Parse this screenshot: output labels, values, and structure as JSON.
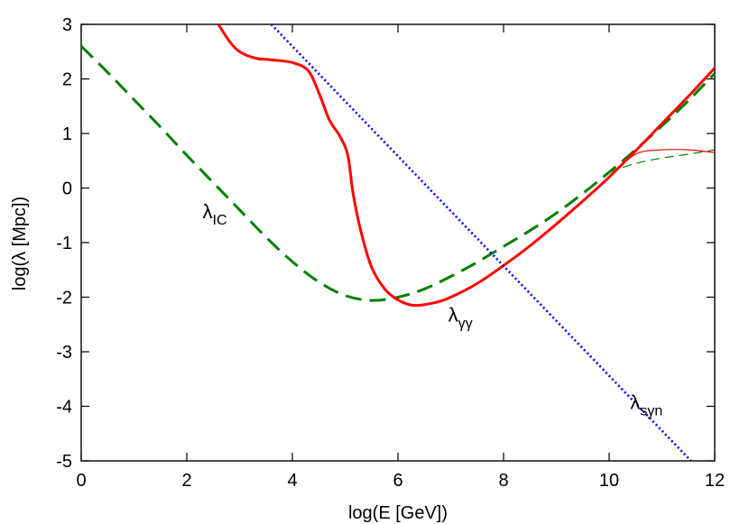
{
  "chart_data": {
    "type": "line",
    "xlabel": "log(E [GeV])",
    "ylabel": "log(λ [Mpc])",
    "xlim": [
      0,
      12
    ],
    "ylim": [
      -5,
      3
    ],
    "xticks": [
      0,
      2,
      4,
      6,
      8,
      10,
      12
    ],
    "yticks": [
      -5,
      -4,
      -3,
      -2,
      -1,
      0,
      1,
      2,
      3
    ],
    "xtick_labels": [
      "0",
      "2",
      "4",
      "6",
      "8",
      "10",
      "12"
    ],
    "ytick_labels": [
      "-5",
      "-4",
      "-3",
      "-2",
      "-1",
      "0",
      "1",
      "2",
      "3"
    ],
    "grid": false,
    "legend": "none",
    "series": [
      {
        "id": "ic",
        "color": "#008000",
        "style": "dashed",
        "width": "thick",
        "points": [
          [
            0,
            2.6
          ],
          [
            0.5,
            2.12
          ],
          [
            1,
            1.62
          ],
          [
            1.5,
            1.12
          ],
          [
            2,
            0.6
          ],
          [
            2.5,
            0.1
          ],
          [
            3,
            -0.4
          ],
          [
            3.5,
            -0.9
          ],
          [
            4,
            -1.35
          ],
          [
            4.5,
            -1.72
          ],
          [
            5,
            -1.97
          ],
          [
            5.5,
            -2.06
          ],
          [
            6,
            -2.0
          ],
          [
            6.5,
            -1.85
          ],
          [
            7,
            -1.62
          ],
          [
            7.5,
            -1.36
          ],
          [
            8,
            -1.07
          ],
          [
            8.5,
            -0.78
          ],
          [
            9,
            -0.46
          ],
          [
            9.5,
            -0.1
          ],
          [
            10,
            0.29
          ],
          [
            10.5,
            0.7
          ],
          [
            11,
            1.14
          ],
          [
            11.5,
            1.6
          ],
          [
            12,
            2.1
          ]
        ]
      },
      {
        "id": "ic-low",
        "color": "#008000",
        "style": "dashed",
        "width": "thin",
        "points": [
          [
            10,
            0.29
          ],
          [
            10.5,
            0.45
          ],
          [
            11,
            0.55
          ],
          [
            11.5,
            0.62
          ],
          [
            12,
            0.7
          ]
        ]
      },
      {
        "id": "gg",
        "color": "#ff0000",
        "style": "solid",
        "width": "thick",
        "points": [
          [
            2.6,
            3.0
          ],
          [
            2.8,
            2.7
          ],
          [
            3.0,
            2.5
          ],
          [
            3.3,
            2.38
          ],
          [
            3.6,
            2.35
          ],
          [
            4.0,
            2.3
          ],
          [
            4.3,
            2.15
          ],
          [
            4.5,
            1.75
          ],
          [
            4.7,
            1.25
          ],
          [
            4.9,
            0.95
          ],
          [
            5.05,
            0.6
          ],
          [
            5.15,
            -0.1
          ],
          [
            5.3,
            -0.8
          ],
          [
            5.5,
            -1.45
          ],
          [
            5.75,
            -1.85
          ],
          [
            6.0,
            -2.05
          ],
          [
            6.3,
            -2.15
          ],
          [
            6.7,
            -2.1
          ],
          [
            7.0,
            -2.0
          ],
          [
            7.5,
            -1.75
          ],
          [
            8.0,
            -1.42
          ],
          [
            8.5,
            -1.06
          ],
          [
            9.0,
            -0.66
          ],
          [
            9.5,
            -0.24
          ],
          [
            10.0,
            0.2
          ],
          [
            10.5,
            0.68
          ],
          [
            11.0,
            1.18
          ],
          [
            11.5,
            1.68
          ],
          [
            12.0,
            2.2
          ]
        ]
      },
      {
        "id": "gg-low",
        "color": "#ff0000",
        "style": "solid",
        "width": "thin",
        "points": [
          [
            10.0,
            0.2
          ],
          [
            10.5,
            0.62
          ],
          [
            11.0,
            0.7
          ],
          [
            11.5,
            0.7
          ],
          [
            12.0,
            0.65
          ]
        ]
      },
      {
        "id": "syn",
        "color": "#0000ff",
        "style": "dotted",
        "width": "thick",
        "points": [
          [
            3.6,
            3.0
          ],
          [
            11.55,
            -5.0
          ]
        ]
      }
    ],
    "annotations": [
      {
        "id": "ic",
        "base": "λ",
        "sub": "IC",
        "x": 2.3,
        "y": -0.55
      },
      {
        "id": "gg",
        "base": "λ",
        "sub": "γγ",
        "x": 6.95,
        "y": -2.45
      },
      {
        "id": "syn",
        "base": "λ",
        "sub": "syn",
        "x": 10.4,
        "y": -4.05
      }
    ]
  }
}
